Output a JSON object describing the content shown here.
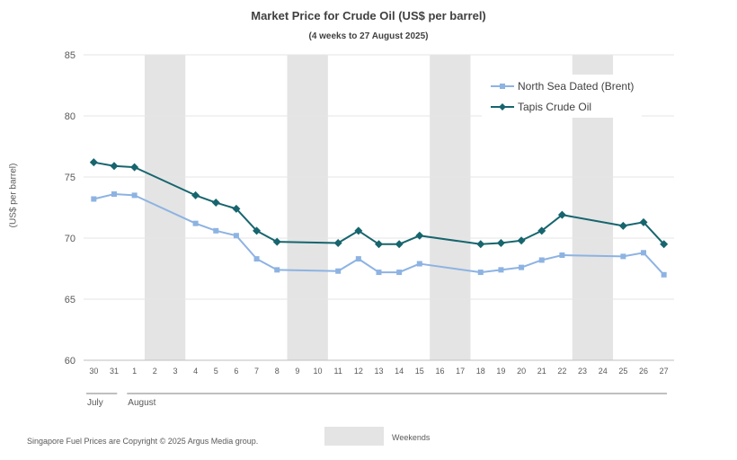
{
  "chart_data": {
    "type": "line",
    "title": "Market Price for Crude  Oil (US$ per barrel)",
    "subtitle": "(4 weeks to 27 August 2025)",
    "ylabel": "(US$ per barrel)",
    "ylim": [
      60,
      85
    ],
    "yticks": [
      60,
      65,
      70,
      75,
      80,
      85
    ],
    "grid": true,
    "legend_position": "top-right",
    "x_labels": [
      "30",
      "31",
      "1",
      "2",
      "3",
      "4",
      "5",
      "6",
      "7",
      "8",
      "9",
      "10",
      "11",
      "12",
      "13",
      "14",
      "15",
      "16",
      "17",
      "18",
      "19",
      "20",
      "21",
      "22",
      "23",
      "24",
      "25",
      "26",
      "27"
    ],
    "month_labels": [
      {
        "label": "July",
        "start": "30",
        "end": "31"
      },
      {
        "label": "August",
        "start": "1",
        "end": "27"
      }
    ],
    "weekends": [
      [
        "2",
        "3"
      ],
      [
        "9",
        "10"
      ],
      [
        "16",
        "17"
      ],
      [
        "23",
        "24"
      ]
    ],
    "series": [
      {
        "name": "North Sea Dated (Brent)",
        "color": "#8db3e2",
        "marker": "square",
        "x": [
          "30",
          "31",
          "1",
          "4",
          "5",
          "6",
          "7",
          "8",
          "11",
          "12",
          "13",
          "14",
          "15",
          "18",
          "19",
          "20",
          "21",
          "22",
          "25",
          "26",
          "27"
        ],
        "values": [
          73.2,
          73.6,
          73.5,
          71.2,
          70.6,
          70.2,
          68.3,
          67.4,
          67.3,
          68.3,
          67.2,
          67.2,
          67.9,
          67.2,
          67.4,
          67.6,
          68.2,
          68.6,
          68.5,
          68.8,
          67.0
        ]
      },
      {
        "name": "Tapis Crude Oil",
        "color": "#17656e",
        "marker": "diamond",
        "x": [
          "30",
          "31",
          "1",
          "4",
          "5",
          "6",
          "7",
          "8",
          "11",
          "12",
          "13",
          "14",
          "15",
          "18",
          "19",
          "20",
          "21",
          "22",
          "25",
          "26",
          "27"
        ],
        "values": [
          76.2,
          75.9,
          75.8,
          73.5,
          72.9,
          72.4,
          70.6,
          69.7,
          69.6,
          70.6,
          69.5,
          69.5,
          70.2,
          69.5,
          69.6,
          69.8,
          70.6,
          71.9,
          71.0,
          71.3,
          69.5
        ]
      }
    ]
  },
  "footer": {
    "copyright": "Singapore  Fuel Prices are  Copyright © 2025 Argus Media  group.",
    "weekends_label": "Weekends"
  }
}
